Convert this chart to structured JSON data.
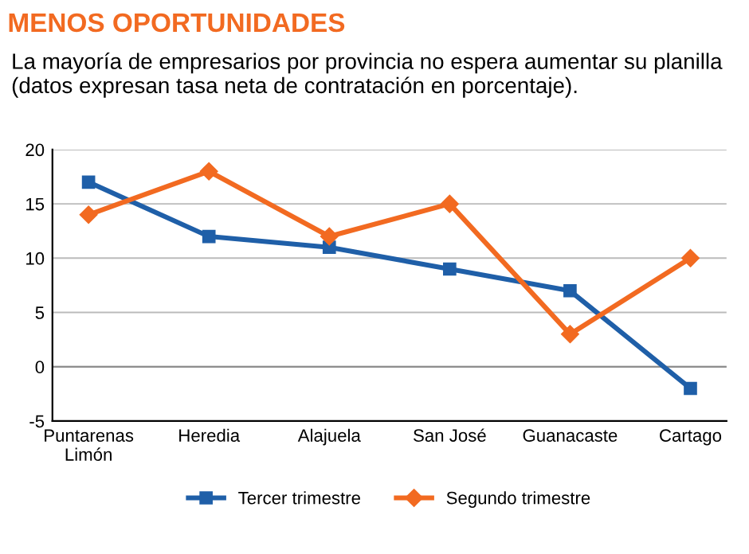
{
  "chart_data": {
    "type": "line",
    "title": "MENOS OPORTUNIDADES",
    "subtitle": "La mayoría de empresarios por provincia no espera aumentar su planilla (datos expresan tasa neta de contratación en porcentaje).",
    "categories": [
      "Puntarenas\nLimón",
      "Heredia",
      "Alajuela",
      "San José",
      "Guanacaste",
      "Cartago"
    ],
    "series": [
      {
        "name": "Tercer trimestre",
        "color": "#1f5fa8",
        "marker": "square",
        "values": [
          17,
          12,
          11,
          9,
          7,
          -2
        ]
      },
      {
        "name": "Segundo trimestre",
        "color": "#f26a21",
        "marker": "diamond",
        "values": [
          14,
          18,
          12,
          15,
          3,
          10
        ]
      }
    ],
    "ylim": [
      -5,
      20
    ],
    "yticks": [
      -5,
      0,
      5,
      10,
      15,
      20
    ],
    "grid": "y",
    "legend": "bottom",
    "line_style": "solid"
  }
}
